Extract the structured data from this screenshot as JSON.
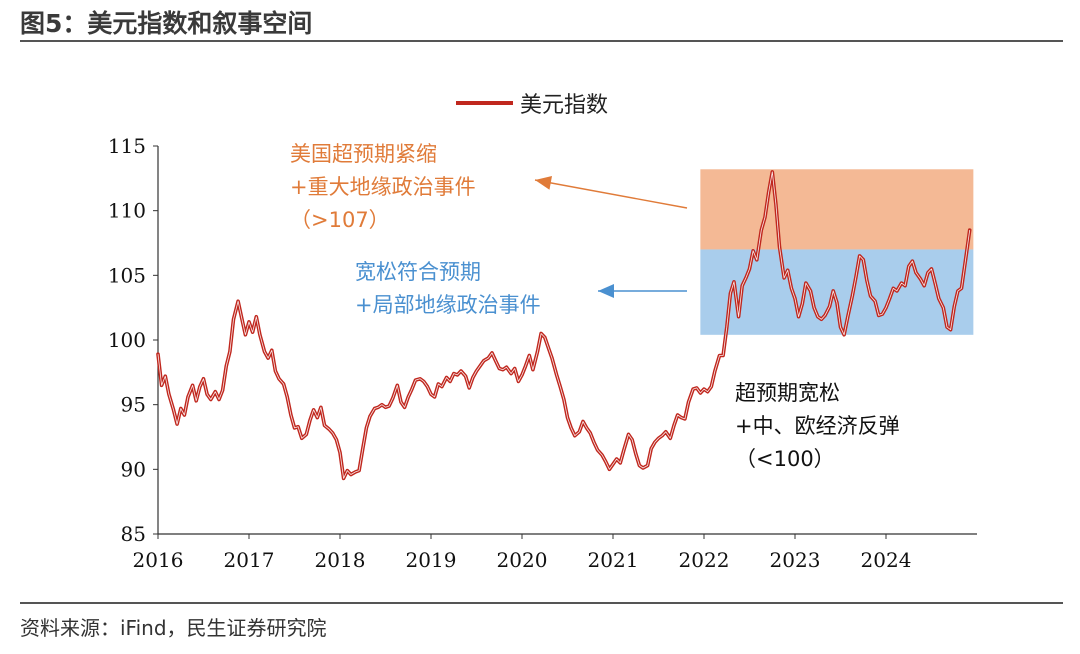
{
  "figure": {
    "title": "图5：美元指数和叙事空间",
    "source": "资料来源：iFind，民生证券研究院"
  },
  "chart_data": {
    "type": "line",
    "title": "美元指数和叙事空间",
    "legend": [
      "美元指数"
    ],
    "legend_position": "top",
    "xlabel": "",
    "ylabel": "",
    "x_ticks": [
      "2016",
      "2017",
      "2018",
      "2019",
      "2020",
      "2021",
      "2022",
      "2023",
      "2024"
    ],
    "y_ticks": [
      85,
      90,
      95,
      100,
      105,
      110,
      115
    ],
    "xlim": [
      2016,
      2025
    ],
    "ylim": [
      85,
      115
    ],
    "colors": {
      "line": "#c0271e",
      "band_high": "#f4b995",
      "band_mid": "#a9cdec",
      "ann_orange": "#e07b39",
      "ann_blue": "#4a90d0",
      "ann_black": "#111111"
    },
    "bands": [
      {
        "name": "high",
        "x_start": 2021.96,
        "x_end": 2024.96,
        "y_low": 107,
        "y_high": 113.2
      },
      {
        "name": "mid",
        "x_start": 2021.96,
        "x_end": 2024.96,
        "y_low": 100.4,
        "y_high": 107
      }
    ],
    "annotations": [
      {
        "lines": [
          "美国超预期紧缩",
          "+重大地缘政治事件",
          "（>107）"
        ],
        "color": "orange"
      },
      {
        "lines": [
          "宽松符合预期",
          "+局部地缘政治事件"
        ],
        "color": "blue"
      },
      {
        "lines": [
          "超预期宽松",
          "+中、欧经济反弹",
          "（<100）"
        ],
        "color": "black"
      }
    ],
    "series": [
      {
        "name": "美元指数",
        "x": [
          2016.0,
          2016.04,
          2016.08,
          2016.12,
          2016.17,
          2016.21,
          2016.25,
          2016.29,
          2016.33,
          2016.38,
          2016.42,
          2016.46,
          2016.5,
          2016.54,
          2016.58,
          2016.63,
          2016.67,
          2016.71,
          2016.75,
          2016.79,
          2016.83,
          2016.88,
          2016.92,
          2016.96,
          2017.0,
          2017.04,
          2017.08,
          2017.12,
          2017.17,
          2017.21,
          2017.25,
          2017.29,
          2017.33,
          2017.38,
          2017.42,
          2017.46,
          2017.5,
          2017.54,
          2017.58,
          2017.63,
          2017.67,
          2017.71,
          2017.75,
          2017.79,
          2017.83,
          2017.88,
          2017.92,
          2017.96,
          2018.0,
          2018.04,
          2018.08,
          2018.12,
          2018.17,
          2018.21,
          2018.25,
          2018.29,
          2018.33,
          2018.38,
          2018.42,
          2018.46,
          2018.5,
          2018.54,
          2018.58,
          2018.63,
          2018.67,
          2018.71,
          2018.75,
          2018.79,
          2018.83,
          2018.88,
          2018.92,
          2018.96,
          2019.0,
          2019.04,
          2019.08,
          2019.12,
          2019.17,
          2019.21,
          2019.25,
          2019.29,
          2019.33,
          2019.38,
          2019.42,
          2019.46,
          2019.5,
          2019.54,
          2019.58,
          2019.63,
          2019.67,
          2019.71,
          2019.75,
          2019.79,
          2019.83,
          2019.88,
          2019.92,
          2019.96,
          2020.0,
          2020.04,
          2020.08,
          2020.12,
          2020.17,
          2020.21,
          2020.25,
          2020.29,
          2020.33,
          2020.38,
          2020.42,
          2020.46,
          2020.5,
          2020.54,
          2020.58,
          2020.63,
          2020.67,
          2020.71,
          2020.75,
          2020.79,
          2020.83,
          2020.88,
          2020.92,
          2020.96,
          2021.0,
          2021.04,
          2021.08,
          2021.12,
          2021.17,
          2021.21,
          2021.25,
          2021.29,
          2021.33,
          2021.38,
          2021.42,
          2021.46,
          2021.5,
          2021.54,
          2021.58,
          2021.63,
          2021.67,
          2021.71,
          2021.75,
          2021.79,
          2021.83,
          2021.88,
          2021.92,
          2021.96,
          2022.0,
          2022.04,
          2022.08,
          2022.12,
          2022.17,
          2022.21,
          2022.25,
          2022.29,
          2022.33,
          2022.38,
          2022.42,
          2022.46,
          2022.5,
          2022.54,
          2022.58,
          2022.63,
          2022.67,
          2022.71,
          2022.75,
          2022.79,
          2022.83,
          2022.88,
          2022.92,
          2022.96,
          2023.0,
          2023.04,
          2023.08,
          2023.12,
          2023.17,
          2023.21,
          2023.25,
          2023.29,
          2023.33,
          2023.38,
          2023.42,
          2023.46,
          2023.5,
          2023.54,
          2023.58,
          2023.63,
          2023.67,
          2023.71,
          2023.75,
          2023.79,
          2023.83,
          2023.88,
          2023.92,
          2023.96,
          2024.0,
          2024.04,
          2024.08,
          2024.12,
          2024.17,
          2024.21,
          2024.25,
          2024.29,
          2024.33,
          2024.38,
          2024.42,
          2024.46,
          2024.5,
          2024.54,
          2024.58,
          2024.63,
          2024.67,
          2024.71,
          2024.75,
          2024.79,
          2024.83,
          2024.88,
          2024.92
        ],
        "values": [
          98.9,
          96.5,
          97.2,
          95.8,
          94.6,
          93.5,
          94.7,
          94.2,
          95.6,
          96.5,
          95.3,
          96.4,
          97.0,
          95.8,
          95.4,
          96.0,
          95.4,
          96.1,
          98.0,
          99.1,
          101.6,
          103.0,
          101.7,
          100.4,
          101.4,
          100.6,
          101.8,
          100.4,
          99.1,
          98.6,
          99.2,
          97.6,
          97.0,
          96.6,
          95.6,
          94.2,
          93.2,
          93.3,
          92.4,
          92.7,
          93.8,
          94.6,
          94.0,
          94.8,
          93.4,
          93.1,
          92.8,
          92.3,
          91.3,
          89.3,
          89.9,
          89.6,
          89.8,
          89.9,
          91.6,
          93.2,
          94.1,
          94.7,
          94.8,
          95.0,
          94.8,
          94.9,
          95.5,
          96.5,
          95.2,
          94.8,
          95.6,
          96.2,
          96.9,
          97.0,
          96.8,
          96.4,
          95.8,
          95.6,
          96.6,
          96.4,
          97.1,
          96.8,
          97.4,
          97.3,
          97.6,
          97.2,
          96.3,
          97.1,
          97.6,
          98.0,
          98.4,
          98.6,
          99.0,
          98.4,
          97.8,
          97.7,
          97.9,
          97.4,
          97.8,
          96.8,
          97.3,
          98.0,
          98.8,
          97.7,
          99.1,
          100.5,
          100.2,
          99.4,
          98.6,
          97.3,
          96.4,
          95.4,
          94.0,
          93.2,
          92.6,
          92.9,
          93.7,
          93.2,
          92.8,
          92.1,
          91.5,
          91.1,
          90.6,
          90.0,
          90.4,
          90.8,
          90.5,
          91.5,
          92.7,
          92.3,
          91.2,
          90.3,
          90.1,
          90.3,
          91.6,
          92.1,
          92.4,
          92.6,
          92.9,
          92.4,
          93.4,
          94.2,
          94.0,
          93.9,
          95.2,
          96.2,
          96.3,
          95.9,
          96.2,
          96.0,
          96.4,
          97.6,
          98.8,
          98.8,
          101.0,
          103.6,
          104.5,
          101.8,
          104.2,
          104.8,
          105.5,
          106.9,
          106.2,
          108.5,
          109.5,
          111.4,
          113.0,
          110.5,
          107.2,
          104.8,
          105.4,
          104.0,
          103.2,
          101.8,
          102.8,
          104.4,
          103.8,
          102.5,
          101.8,
          101.6,
          101.9,
          102.6,
          103.8,
          102.9,
          101.0,
          100.4,
          101.8,
          103.4,
          104.9,
          106.5,
          106.2,
          104.6,
          103.4,
          103.0,
          101.9,
          102.0,
          102.5,
          103.2,
          104.0,
          103.8,
          104.4,
          104.2,
          105.7,
          106.1,
          105.2,
          104.7,
          104.2,
          105.2,
          105.5,
          104.4,
          103.2,
          102.5,
          101.0,
          100.8,
          102.6,
          103.8,
          104.0,
          106.5,
          108.5
        ]
      }
    ]
  }
}
